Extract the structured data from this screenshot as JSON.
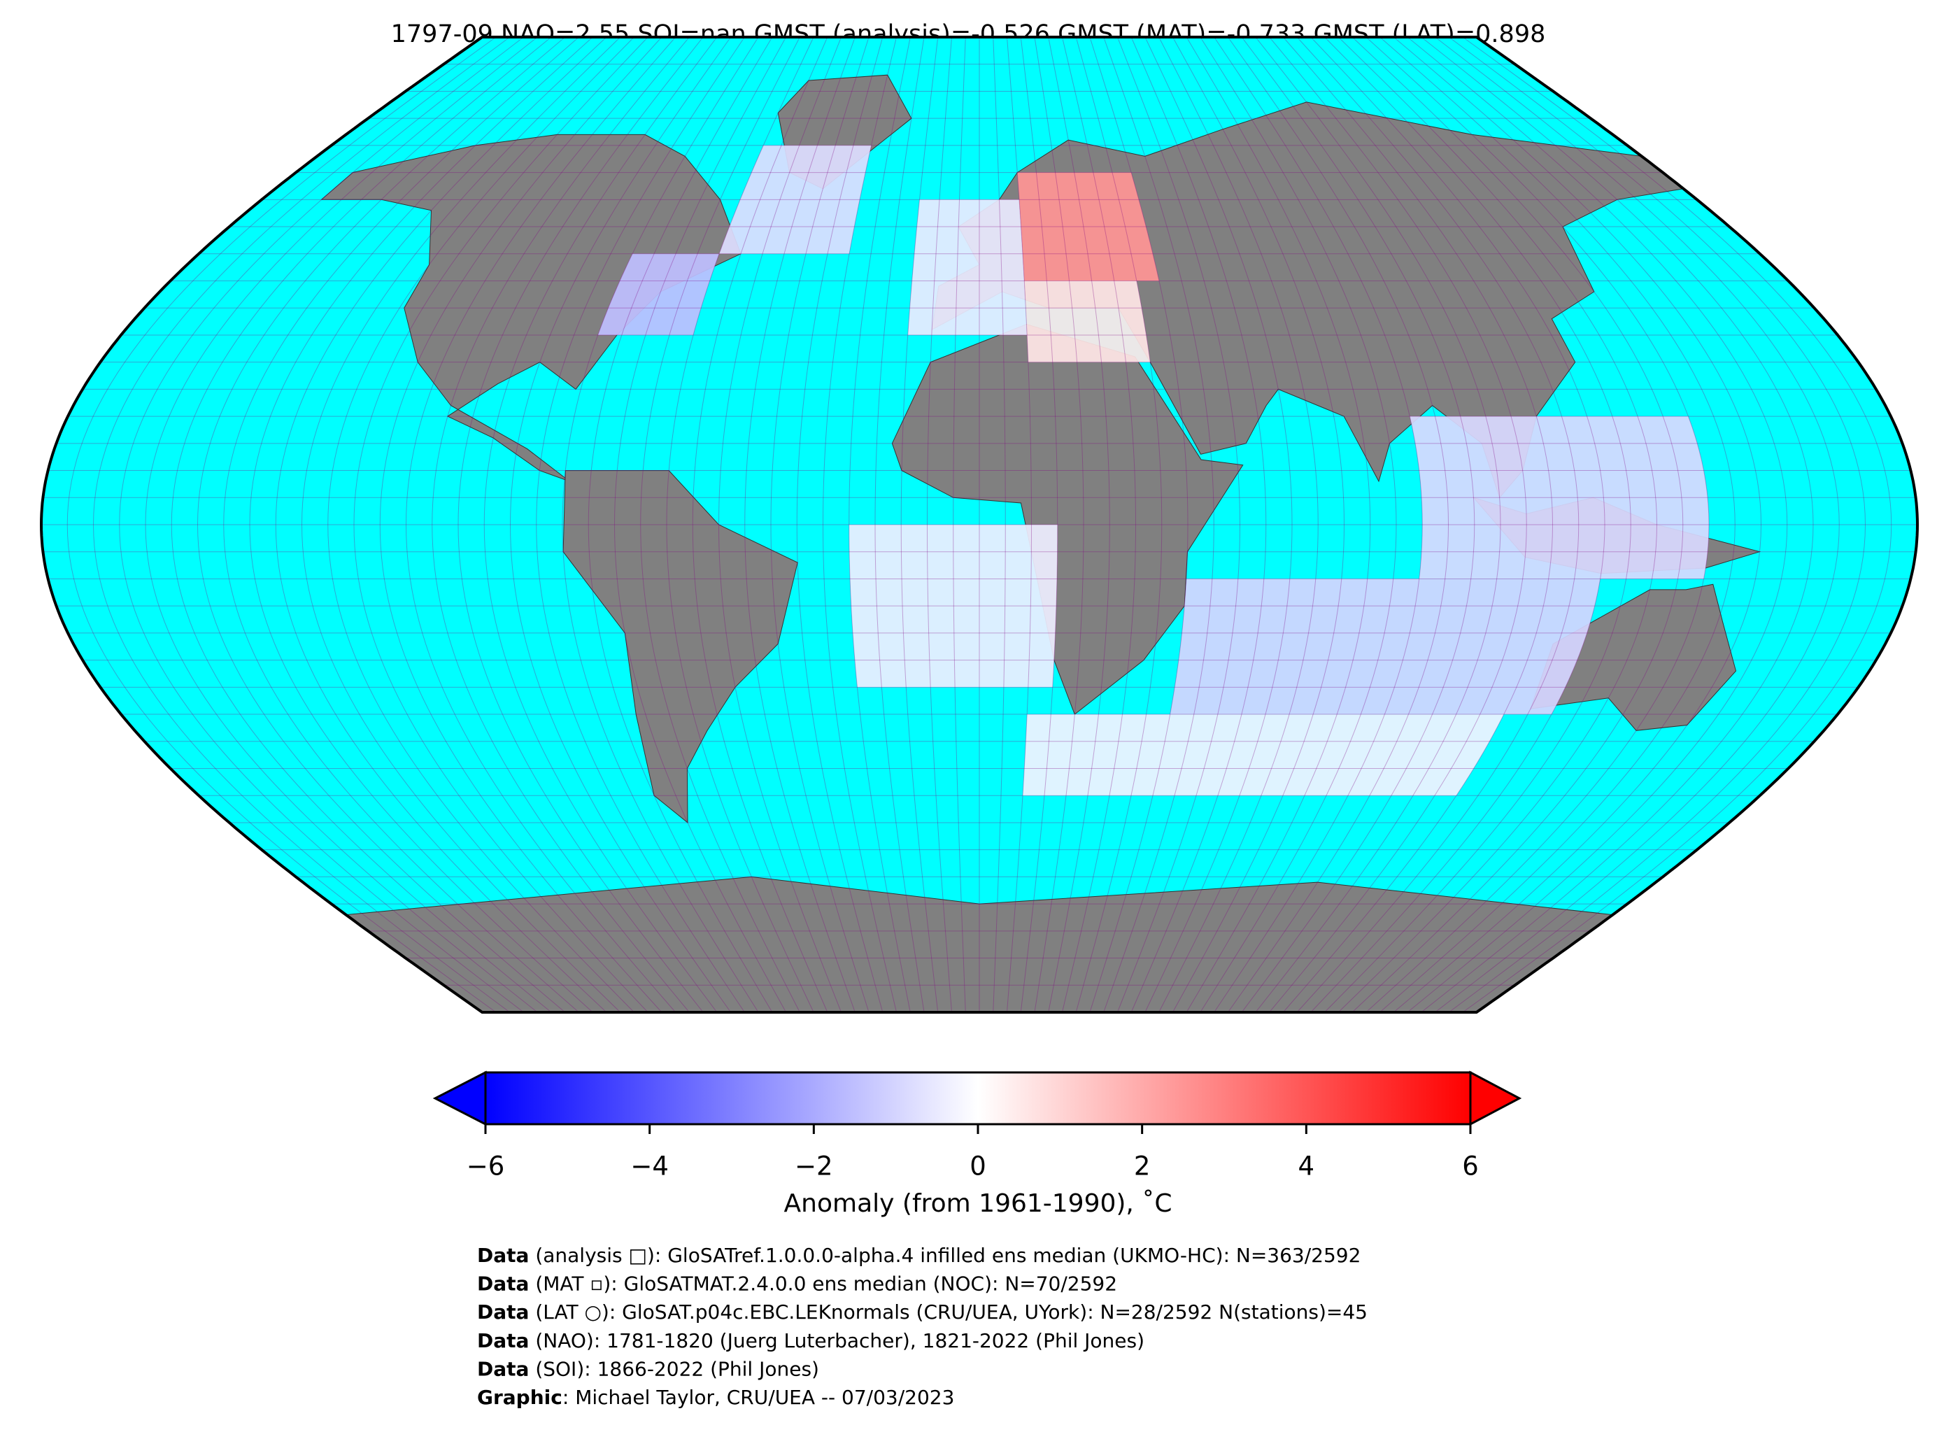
{
  "title": "1797-09 NAO=2.55 SOI=nan GMST (analysis)=-0.526 GMST (MAT)=-0.733 GMST (LAT)=0.898",
  "chart_data": {
    "type": "map",
    "colorbar": {
      "label": "Anomaly (from 1961-1990), ˚C",
      "clim": [
        -6,
        6
      ],
      "ticks": [
        {
          "value": -6,
          "label": "−6"
        },
        {
          "value": -4,
          "label": "−4"
        },
        {
          "value": -2,
          "label": "−2"
        },
        0,
        2,
        4,
        6
      ],
      "colors": [
        "#0000ff",
        "#ffffff",
        "#ff0000"
      ]
    },
    "cells": [
      {
        "lon": [
          -80,
          -60
        ],
        "lat": [
          35,
          50
        ],
        "value": -1.5
      },
      {
        "lon": [
          -60,
          -30
        ],
        "lat": [
          50,
          70
        ],
        "value": -0.8
      },
      {
        "lon": [
          -15,
          10
        ],
        "lat": [
          35,
          60
        ],
        "value": -0.5
      },
      {
        "lon": [
          10,
          40
        ],
        "lat": [
          45,
          65
        ],
        "value": 2.5
      },
      {
        "lon": [
          10,
          35
        ],
        "lat": [
          30,
          45
        ],
        "value": 0.6
      },
      {
        "lon": [
          40,
          120
        ],
        "lat": [
          -35,
          -10
        ],
        "value": -1.0
      },
      {
        "lon": [
          85,
          140
        ],
        "lat": [
          -10,
          20
        ],
        "value": -0.9
      },
      {
        "lon": [
          -25,
          15
        ],
        "lat": [
          -30,
          0
        ],
        "value": -0.4
      },
      {
        "lon": [
          10,
          110
        ],
        "lat": [
          -50,
          -35
        ],
        "value": -0.3
      }
    ]
  },
  "footer": [
    {
      "bold": "Data",
      "text": " (analysis □): GloSATref.1.0.0.0-alpha.4 infilled ens median (UKMO-HC): N=363/2592"
    },
    {
      "bold": "Data",
      "text": " (MAT ▫): GloSATMAT.2.4.0.0 ens median (NOC): N=70/2592"
    },
    {
      "bold": "Data",
      "text": " (LAT ○): GloSAT.p04c.EBC.LEKnormals (CRU/UEA, UYork): N=28/2592 N(stations)=45"
    },
    {
      "bold": "Data",
      "text": " (NAO): 1781-1820 (Juerg Luterbacher), 1821-2022 (Phil Jones)"
    },
    {
      "bold": "Data",
      "text": " (SOI): 1866-2022 (Phil Jones)"
    },
    {
      "bold": "Graphic",
      "text": ": Michael Taylor, CRU/UEA -- 07/03/2023"
    }
  ]
}
